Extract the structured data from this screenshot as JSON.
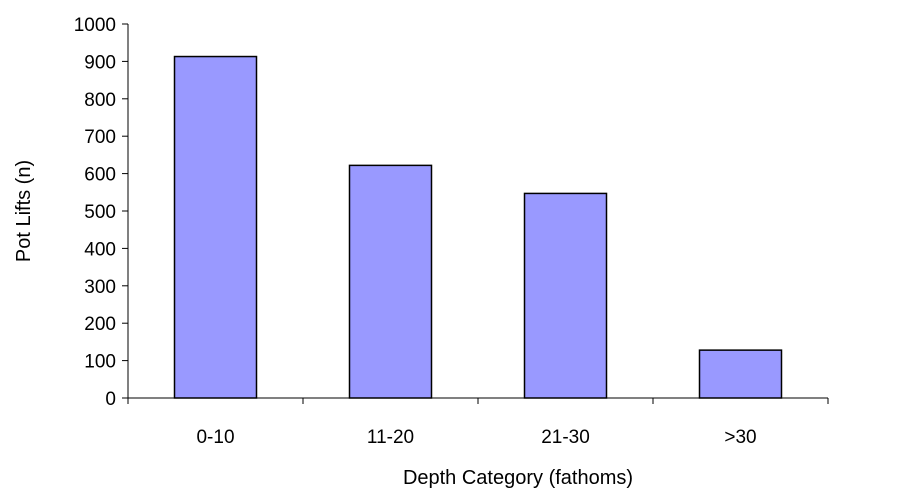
{
  "chart_data": {
    "type": "bar",
    "title": "",
    "xlabel": "Depth Category (fathoms)",
    "ylabel": "Pot Lifts (n)",
    "categories": [
      "0-10",
      "11-20",
      "21-30",
      ">30"
    ],
    "values": [
      913,
      622,
      547,
      128
    ],
    "ylim": [
      0,
      1000
    ],
    "yticks": [
      0,
      100,
      200,
      300,
      400,
      500,
      600,
      700,
      800,
      900,
      1000
    ],
    "grid": false,
    "legend": "none",
    "colors": {
      "bar_fill": "#9999ff",
      "bar_stroke": "#000000",
      "axis": "#000000"
    }
  }
}
